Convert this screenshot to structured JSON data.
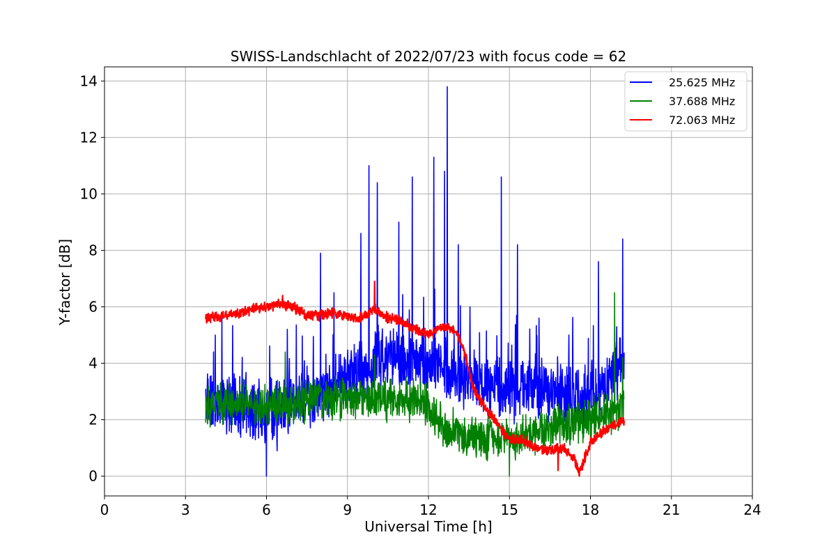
{
  "chart_data": {
    "type": "line",
    "title": "SWISS-Landschlacht of 2022/07/23 with focus code = 62",
    "xlabel": "Universal Time [h]",
    "ylabel": "Y-factor [dB]",
    "xlim": [
      0,
      24
    ],
    "ylim": [
      -0.7,
      14.5
    ],
    "xticks": [
      0,
      3,
      6,
      9,
      12,
      15,
      18,
      21,
      24
    ],
    "yticks": [
      0,
      2,
      4,
      6,
      8,
      10,
      12,
      14
    ],
    "xtick_labels": [
      "0",
      "3",
      "6",
      "9",
      "12",
      "15",
      "18",
      "21",
      "24"
    ],
    "ytick_labels": [
      "0",
      "2",
      "4",
      "6",
      "8",
      "10",
      "12",
      "14"
    ],
    "grid": true,
    "legend_position": "top-right",
    "series": [
      {
        "name": "25.625 MHz",
        "color": "#0000ff",
        "base": [
          [
            3.75,
            2.8
          ],
          [
            4.5,
            2.6
          ],
          [
            5.5,
            2.3
          ],
          [
            6.5,
            2.4
          ],
          [
            7.5,
            2.8
          ],
          [
            8.5,
            3.2
          ],
          [
            9.5,
            3.8
          ],
          [
            10.5,
            4.2
          ],
          [
            11.5,
            4.0
          ],
          [
            12.5,
            4.0
          ],
          [
            13.0,
            3.5
          ],
          [
            14.0,
            3.2
          ],
          [
            15.0,
            3.0
          ],
          [
            16.0,
            3.2
          ],
          [
            17.0,
            2.8
          ],
          [
            18.0,
            2.8
          ],
          [
            19.25,
            4.0
          ]
        ],
        "noise": 1.3,
        "spikes": [
          [
            4.1,
            5.0
          ],
          [
            6.0,
            0.0
          ],
          [
            6.4,
            0.9
          ],
          [
            8.0,
            7.9
          ],
          [
            8.5,
            6.5
          ],
          [
            9.5,
            8.6
          ],
          [
            9.8,
            11.0
          ],
          [
            10.1,
            10.4
          ],
          [
            10.9,
            9.0
          ],
          [
            11.4,
            10.6
          ],
          [
            12.2,
            11.3
          ],
          [
            12.6,
            10.8
          ],
          [
            12.7,
            13.8
          ],
          [
            13.1,
            8.2
          ],
          [
            14.7,
            10.6
          ],
          [
            15.3,
            8.2
          ],
          [
            16.1,
            5.6
          ],
          [
            17.2,
            5.0
          ],
          [
            18.3,
            7.6
          ],
          [
            19.2,
            8.4
          ]
        ]
      },
      {
        "name": "37.688 MHz",
        "color": "#008000",
        "base": [
          [
            3.75,
            2.6
          ],
          [
            6.0,
            2.6
          ],
          [
            8.0,
            2.7
          ],
          [
            10.0,
            2.8
          ],
          [
            11.5,
            2.7
          ],
          [
            12.0,
            2.5
          ],
          [
            12.5,
            1.8
          ],
          [
            13.5,
            1.4
          ],
          [
            15.0,
            1.3
          ],
          [
            16.0,
            1.6
          ],
          [
            17.0,
            1.8
          ],
          [
            18.0,
            2.0
          ],
          [
            19.25,
            2.4
          ]
        ],
        "noise": 0.9,
        "spikes": [
          [
            6.7,
            4.4
          ],
          [
            10.0,
            4.3
          ],
          [
            15.0,
            0.0
          ],
          [
            18.9,
            6.5
          ],
          [
            19.2,
            4.2
          ]
        ]
      },
      {
        "name": "72.063 MHz",
        "color": "#ff0000",
        "base": [
          [
            3.75,
            5.6
          ],
          [
            4.5,
            5.7
          ],
          [
            5.5,
            5.9
          ],
          [
            6.5,
            6.1
          ],
          [
            7.0,
            6.0
          ],
          [
            7.5,
            5.7
          ],
          [
            8.0,
            5.7
          ],
          [
            8.5,
            5.8
          ],
          [
            9.0,
            5.6
          ],
          [
            9.5,
            5.6
          ],
          [
            10.0,
            5.9
          ],
          [
            10.5,
            5.6
          ],
          [
            11.0,
            5.5
          ],
          [
            11.5,
            5.2
          ],
          [
            12.0,
            5.0
          ],
          [
            12.5,
            5.3
          ],
          [
            13.0,
            5.2
          ],
          [
            13.3,
            4.5
          ],
          [
            13.7,
            3.0
          ],
          [
            14.2,
            2.3
          ],
          [
            14.7,
            1.7
          ],
          [
            15.0,
            1.3
          ],
          [
            15.5,
            1.3
          ],
          [
            16.0,
            1.0
          ],
          [
            16.5,
            0.9
          ],
          [
            17.0,
            1.0
          ],
          [
            17.4,
            0.6
          ],
          [
            17.6,
            0.1
          ],
          [
            18.0,
            1.2
          ],
          [
            18.5,
            1.6
          ],
          [
            19.25,
            2.0
          ]
        ],
        "noise": 0.22,
        "spikes": [
          [
            6.6,
            6.4
          ],
          [
            10.0,
            6.9
          ],
          [
            16.8,
            0.2
          ]
        ]
      }
    ]
  }
}
